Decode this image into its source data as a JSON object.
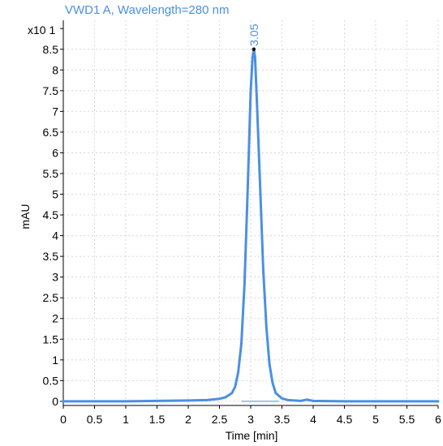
{
  "chart_data": {
    "type": "line",
    "title": "VWD1 A, Wavelength=280 nm",
    "xlabel": "Time [min]",
    "ylabel": "mAU",
    "y_multiplier": "x10 1",
    "xlim": [
      0,
      6
    ],
    "ylim": [
      -0.1,
      9.2
    ],
    "x_ticks": [
      0,
      0.5,
      1,
      1.5,
      2,
      2.5,
      3,
      3.5,
      4,
      4.5,
      5,
      5.5,
      6
    ],
    "x_tick_labels": [
      "0",
      "0.5",
      "1",
      "1.5",
      "2",
      "2.5",
      "3",
      "3.5",
      "4",
      "4.5",
      "5",
      "5.5",
      "6"
    ],
    "y_ticks": [
      0,
      0.5,
      1,
      1.5,
      2,
      2.5,
      3,
      3.5,
      4,
      4.5,
      5,
      5.5,
      6,
      6.5,
      7,
      7.5,
      8,
      8.5
    ],
    "y_tick_labels": [
      "0",
      "0.5",
      "1",
      "1.5",
      "2",
      "2.5",
      "3",
      "3.5",
      "4",
      "4.5",
      "5",
      "5.5",
      "6",
      "6.5",
      "7",
      "7.5",
      "8",
      "8.5"
    ],
    "grid": true,
    "series": [
      {
        "color": "#4a90e2",
        "x": [
          0,
          0.5,
          1,
          1.5,
          2,
          2.3,
          2.5,
          2.6,
          2.7,
          2.75,
          2.8,
          2.85,
          2.9,
          2.95,
          3.0,
          3.03,
          3.05,
          3.07,
          3.1,
          3.15,
          3.2,
          3.25,
          3.3,
          3.35,
          3.4,
          3.5,
          3.6,
          3.8,
          3.9,
          4.0,
          4.5,
          5,
          5.5,
          6
        ],
        "y": [
          0,
          0,
          0,
          0.01,
          0.02,
          0.03,
          0.06,
          0.1,
          0.2,
          0.35,
          0.7,
          1.4,
          2.8,
          5.0,
          7.5,
          8.3,
          8.5,
          8.3,
          7.2,
          5.2,
          3.2,
          1.8,
          0.9,
          0.45,
          0.2,
          0.07,
          0.03,
          0.01,
          0.04,
          0.01,
          0,
          0,
          0,
          0
        ]
      }
    ],
    "annotations": [
      {
        "x": 3.05,
        "y": 8.5,
        "text": "3.05"
      }
    ],
    "colors": {
      "series": "#4a90e2",
      "title": "#4a90e2",
      "annotation": "#4a90e2",
      "baseline": "#4a90e2",
      "grid": "#d8d8d8",
      "axis": "#000000"
    }
  }
}
